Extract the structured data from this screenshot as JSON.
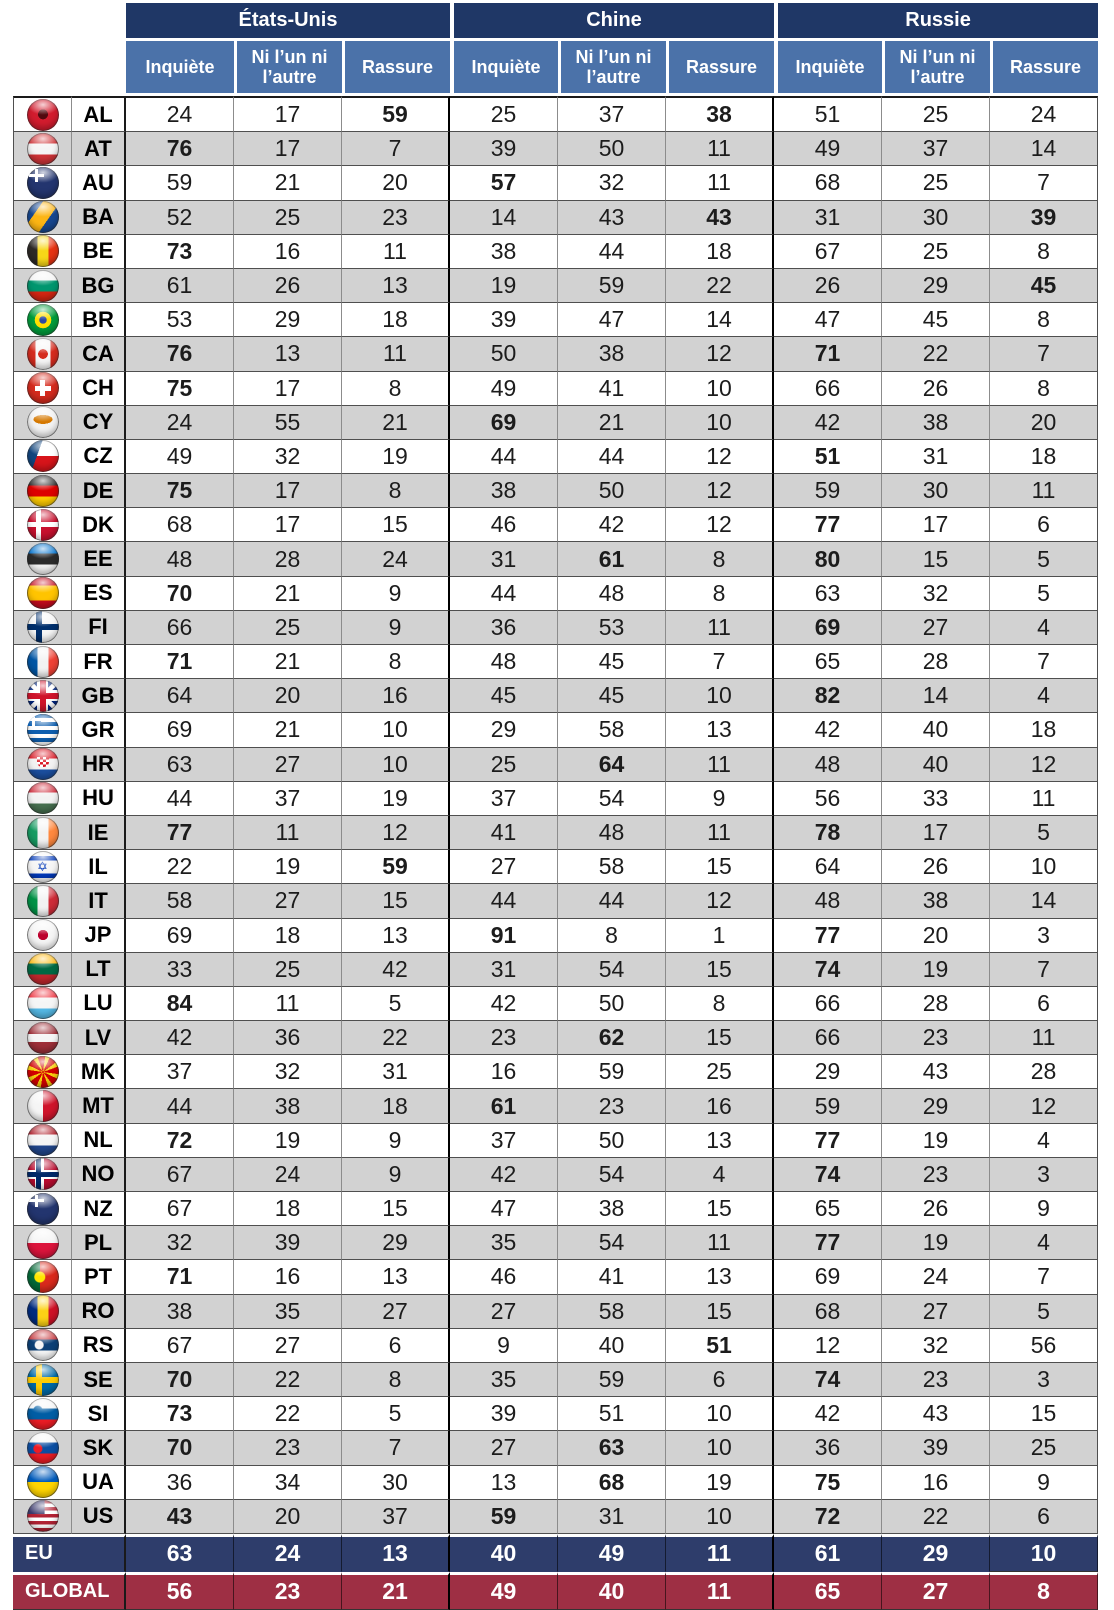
{
  "colors": {
    "header_navy": "#1f3766",
    "header_blue": "#4b72a9",
    "row_alt_gray": "#d2d2d2",
    "eu_row_navy": "#2e3d6b",
    "global_row_red": "#9e2f44"
  },
  "chart_data": {
    "type": "table",
    "title": "",
    "col_groups": [
      "États-Unis",
      "Chine",
      "Russie"
    ],
    "sub_columns": [
      "Inquiète",
      "Ni l’un ni l’autre",
      "Rassure"
    ],
    "rows": [
      {
        "code": "AL",
        "flag": "albania",
        "values": [
          24,
          17,
          59,
          25,
          37,
          38,
          51,
          25,
          24
        ],
        "bold": [
          2,
          5
        ]
      },
      {
        "code": "AT",
        "flag": "austria",
        "values": [
          76,
          17,
          7,
          39,
          50,
          11,
          49,
          37,
          14
        ],
        "bold": [
          0
        ]
      },
      {
        "code": "AU",
        "flag": "australia",
        "values": [
          59,
          21,
          20,
          57,
          32,
          11,
          68,
          25,
          7
        ],
        "bold": [
          3
        ]
      },
      {
        "code": "BA",
        "flag": "bosnia",
        "values": [
          52,
          25,
          23,
          14,
          43,
          43,
          31,
          30,
          39
        ],
        "bold": [
          5,
          8
        ]
      },
      {
        "code": "BE",
        "flag": "belgium",
        "values": [
          73,
          16,
          11,
          38,
          44,
          18,
          67,
          25,
          8
        ],
        "bold": [
          0
        ]
      },
      {
        "code": "BG",
        "flag": "bulgaria",
        "values": [
          61,
          26,
          13,
          19,
          59,
          22,
          26,
          29,
          45
        ],
        "bold": [
          8
        ]
      },
      {
        "code": "BR",
        "flag": "brazil",
        "values": [
          53,
          29,
          18,
          39,
          47,
          14,
          47,
          45,
          8
        ],
        "bold": []
      },
      {
        "code": "CA",
        "flag": "canada",
        "values": [
          76,
          13,
          11,
          50,
          38,
          12,
          71,
          22,
          7
        ],
        "bold": [
          0,
          6
        ]
      },
      {
        "code": "CH",
        "flag": "switzerland",
        "values": [
          75,
          17,
          8,
          49,
          41,
          10,
          66,
          26,
          8
        ],
        "bold": [
          0
        ]
      },
      {
        "code": "CY",
        "flag": "cyprus",
        "values": [
          24,
          55,
          21,
          69,
          21,
          10,
          42,
          38,
          20
        ],
        "bold": [
          3
        ]
      },
      {
        "code": "CZ",
        "flag": "czechia",
        "values": [
          49,
          32,
          19,
          44,
          44,
          12,
          51,
          31,
          18
        ],
        "bold": [
          6
        ]
      },
      {
        "code": "DE",
        "flag": "germany",
        "values": [
          75,
          17,
          8,
          38,
          50,
          12,
          59,
          30,
          11
        ],
        "bold": [
          0
        ]
      },
      {
        "code": "DK",
        "flag": "denmark",
        "values": [
          68,
          17,
          15,
          46,
          42,
          12,
          77,
          17,
          6
        ],
        "bold": [
          6
        ]
      },
      {
        "code": "EE",
        "flag": "estonia",
        "values": [
          48,
          28,
          24,
          31,
          61,
          8,
          80,
          15,
          5
        ],
        "bold": [
          4,
          6
        ]
      },
      {
        "code": "ES",
        "flag": "spain",
        "values": [
          70,
          21,
          9,
          44,
          48,
          8,
          63,
          32,
          5
        ],
        "bold": [
          0
        ]
      },
      {
        "code": "FI",
        "flag": "finland",
        "values": [
          66,
          25,
          9,
          36,
          53,
          11,
          69,
          27,
          4
        ],
        "bold": [
          6
        ]
      },
      {
        "code": "FR",
        "flag": "france",
        "values": [
          71,
          21,
          8,
          48,
          45,
          7,
          65,
          28,
          7
        ],
        "bold": [
          0
        ]
      },
      {
        "code": "GB",
        "flag": "united-kingdom",
        "values": [
          64,
          20,
          16,
          45,
          45,
          10,
          82,
          14,
          4
        ],
        "bold": [
          6
        ]
      },
      {
        "code": "GR",
        "flag": "greece",
        "values": [
          69,
          21,
          10,
          29,
          58,
          13,
          42,
          40,
          18
        ],
        "bold": []
      },
      {
        "code": "HR",
        "flag": "croatia",
        "values": [
          63,
          27,
          10,
          25,
          64,
          11,
          48,
          40,
          12
        ],
        "bold": [
          4
        ]
      },
      {
        "code": "HU",
        "flag": "hungary",
        "values": [
          44,
          37,
          19,
          37,
          54,
          9,
          56,
          33,
          11
        ],
        "bold": []
      },
      {
        "code": "IE",
        "flag": "ireland",
        "values": [
          77,
          11,
          12,
          41,
          48,
          11,
          78,
          17,
          5
        ],
        "bold": [
          0,
          6
        ]
      },
      {
        "code": "IL",
        "flag": "israel",
        "values": [
          22,
          19,
          59,
          27,
          58,
          15,
          64,
          26,
          10
        ],
        "bold": [
          2
        ]
      },
      {
        "code": "IT",
        "flag": "italy",
        "values": [
          58,
          27,
          15,
          44,
          44,
          12,
          48,
          38,
          14
        ],
        "bold": []
      },
      {
        "code": "JP",
        "flag": "japan",
        "values": [
          69,
          18,
          13,
          91,
          8,
          1,
          77,
          20,
          3
        ],
        "bold": [
          3,
          6
        ]
      },
      {
        "code": "LT",
        "flag": "lithuania",
        "values": [
          33,
          25,
          42,
          31,
          54,
          15,
          74,
          19,
          7
        ],
        "bold": [
          6
        ]
      },
      {
        "code": "LU",
        "flag": "luxembourg",
        "values": [
          84,
          11,
          5,
          42,
          50,
          8,
          66,
          28,
          6
        ],
        "bold": [
          0
        ]
      },
      {
        "code": "LV",
        "flag": "latvia",
        "values": [
          42,
          36,
          22,
          23,
          62,
          15,
          66,
          23,
          11
        ],
        "bold": [
          4
        ]
      },
      {
        "code": "MK",
        "flag": "north-macedonia",
        "values": [
          37,
          32,
          31,
          16,
          59,
          25,
          29,
          43,
          28
        ],
        "bold": []
      },
      {
        "code": "MT",
        "flag": "malta",
        "values": [
          44,
          38,
          18,
          61,
          23,
          16,
          59,
          29,
          12
        ],
        "bold": [
          3
        ]
      },
      {
        "code": "NL",
        "flag": "netherlands",
        "values": [
          72,
          19,
          9,
          37,
          50,
          13,
          77,
          19,
          4
        ],
        "bold": [
          0,
          6
        ]
      },
      {
        "code": "NO",
        "flag": "norway",
        "values": [
          67,
          24,
          9,
          42,
          54,
          4,
          74,
          23,
          3
        ],
        "bold": [
          6
        ]
      },
      {
        "code": "NZ",
        "flag": "new-zealand",
        "values": [
          67,
          18,
          15,
          47,
          38,
          15,
          65,
          26,
          9
        ],
        "bold": []
      },
      {
        "code": "PL",
        "flag": "poland",
        "values": [
          32,
          39,
          29,
          35,
          54,
          11,
          77,
          19,
          4
        ],
        "bold": [
          6
        ]
      },
      {
        "code": "PT",
        "flag": "portugal",
        "values": [
          71,
          16,
          13,
          46,
          41,
          13,
          69,
          24,
          7
        ],
        "bold": [
          0
        ]
      },
      {
        "code": "RO",
        "flag": "romania",
        "values": [
          38,
          35,
          27,
          27,
          58,
          15,
          68,
          27,
          5
        ],
        "bold": []
      },
      {
        "code": "RS",
        "flag": "serbia",
        "values": [
          67,
          27,
          6,
          9,
          40,
          51,
          12,
          32,
          56
        ],
        "bold": [
          5
        ]
      },
      {
        "code": "SE",
        "flag": "sweden",
        "values": [
          70,
          22,
          8,
          35,
          59,
          6,
          74,
          23,
          3
        ],
        "bold": [
          0,
          6
        ]
      },
      {
        "code": "SI",
        "flag": "slovenia",
        "values": [
          73,
          22,
          5,
          39,
          51,
          10,
          42,
          43,
          15
        ],
        "bold": [
          0
        ]
      },
      {
        "code": "SK",
        "flag": "slovakia",
        "values": [
          70,
          23,
          7,
          27,
          63,
          10,
          36,
          39,
          25
        ],
        "bold": [
          0,
          4
        ]
      },
      {
        "code": "UA",
        "flag": "ukraine",
        "values": [
          36,
          34,
          30,
          13,
          68,
          19,
          75,
          16,
          9
        ],
        "bold": [
          4,
          6
        ]
      },
      {
        "code": "US",
        "flag": "united-states",
        "values": [
          43,
          20,
          37,
          59,
          31,
          10,
          72,
          22,
          6
        ],
        "bold": [
          0,
          3,
          6
        ]
      }
    ],
    "footer": [
      {
        "label": "EU",
        "values": [
          63,
          24,
          13,
          40,
          49,
          11,
          61,
          29,
          10
        ]
      },
      {
        "label": "GLOBAL",
        "values": [
          56,
          23,
          21,
          49,
          40,
          11,
          65,
          27,
          8
        ]
      }
    ]
  }
}
